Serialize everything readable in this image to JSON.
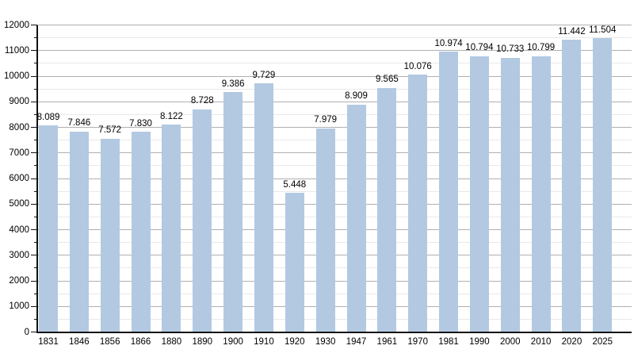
{
  "chart_data": {
    "type": "bar",
    "title": "",
    "xlabel": "",
    "ylabel": "",
    "categories": [
      "1831",
      "1846",
      "1856",
      "1866",
      "1880",
      "1890",
      "1900",
      "1910",
      "1920",
      "1930",
      "1947",
      "1961",
      "1970",
      "1981",
      "1990",
      "2000",
      "2010",
      "2020",
      "2025"
    ],
    "values": [
      8089,
      7846,
      7572,
      7830,
      8122,
      8728,
      9386,
      9729,
      5448,
      7979,
      8909,
      9565,
      10076,
      10974,
      10794,
      10733,
      10799,
      11442,
      11504
    ],
    "value_labels": [
      "8.089",
      "7.846",
      "7.572",
      "7.830",
      "8.122",
      "8.728",
      "9.386",
      "9.729",
      "5.448",
      "7.979",
      "8.909",
      "9.565",
      "10.076",
      "10.974",
      "10.794",
      "10.733",
      "10.799",
      "11.442",
      "11.504"
    ],
    "ylim": [
      0,
      12000
    ],
    "y_major_step": 1000,
    "y_minor_step": 500,
    "y_tick_labels": [
      "0",
      "1000",
      "2000",
      "3000",
      "4000",
      "5000",
      "6000",
      "7000",
      "8000",
      "9000",
      "10000",
      "11000",
      "12000"
    ],
    "grid": true,
    "legend": "none",
    "colors": {
      "bar_fill": "#b2c9e1",
      "major_gridline": "#b0b0b0",
      "minor_gridline": "#e9e9e9",
      "axis": "#111111",
      "text": "#000000",
      "background": "#ffffff"
    }
  }
}
